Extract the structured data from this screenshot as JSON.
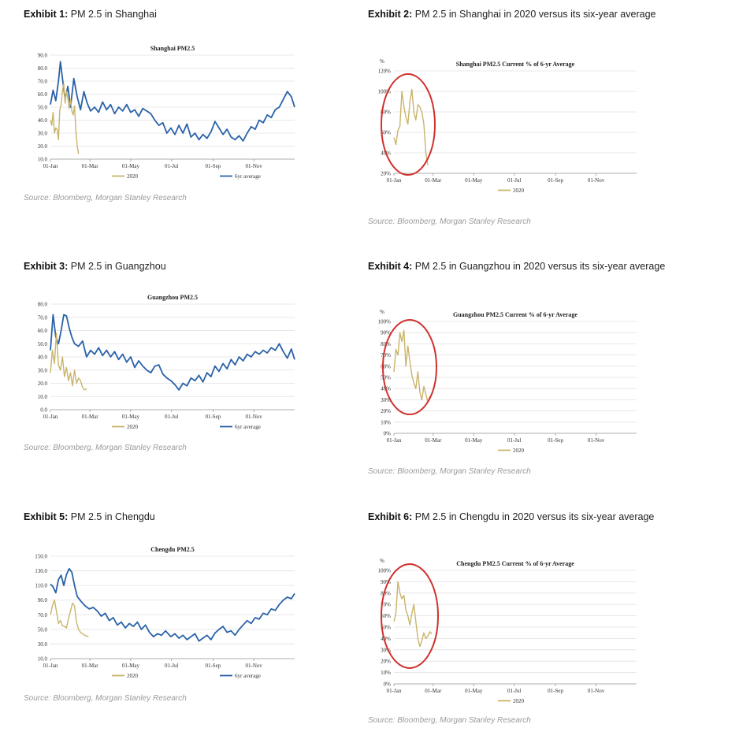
{
  "colors": {
    "six_year_avg": "#2a62a8",
    "y2020": "#c9b46a",
    "circle": "#d0312d",
    "grid": "#e1e1e1"
  },
  "source_text": "Source: Bloomberg, Morgan Stanley Research",
  "exhibits": [
    {
      "label": "Exhibit 1:",
      "title": "PM 2.5 in Shanghai"
    },
    {
      "label": "Exhibit 2:",
      "title": "PM 2.5 in Shanghai in 2020 versus its six-year average"
    },
    {
      "label": "Exhibit 3:",
      "title": "PM 2.5 in Guangzhou"
    },
    {
      "label": "Exhibit 4:",
      "title": "PM 2.5 in Guangzhou in 2020 versus its six-year average"
    },
    {
      "label": "Exhibit 5:",
      "title": "PM 2.5 in Chengdu"
    },
    {
      "label": "Exhibit 6:",
      "title": "PM 2.5 in Chengdu in 2020 versus its six-year average"
    }
  ],
  "chart_data": [
    {
      "type": "line",
      "title": "Shanghai PM2.5",
      "xlabel": "",
      "ylabel": "",
      "xlim": [
        0,
        365
      ],
      "ylim": [
        10,
        90
      ],
      "yticks": [
        "10.0",
        "20.0",
        "30.0",
        "40.0",
        "50.0",
        "60.0",
        "70.0",
        "80.0",
        "90.0"
      ],
      "xtick_labels": [
        "01-Jan",
        "01-Mar",
        "01-May",
        "01-Jul",
        "01-Sep",
        "01-Nov"
      ],
      "xtick_days": [
        0,
        59,
        120,
        181,
        243,
        304
      ],
      "legend": [
        "2020",
        "6yr average"
      ],
      "series": [
        {
          "name": "6yr average",
          "x": [
            0,
            4,
            8,
            12,
            15,
            18,
            22,
            26,
            30,
            35,
            40,
            45,
            50,
            55,
            60,
            66,
            72,
            78,
            84,
            90,
            96,
            102,
            108,
            114,
            120,
            126,
            132,
            138,
            144,
            150,
            156,
            162,
            168,
            174,
            180,
            186,
            192,
            198,
            204,
            210,
            216,
            222,
            228,
            234,
            240,
            246,
            252,
            258,
            264,
            270,
            276,
            282,
            288,
            294,
            300,
            306,
            312,
            318,
            324,
            330,
            336,
            342,
            348,
            354,
            360,
            365
          ],
          "y": [
            52,
            63,
            55,
            70,
            85,
            72,
            56,
            66,
            50,
            72,
            58,
            48,
            62,
            53,
            47,
            50,
            46,
            54,
            48,
            52,
            45,
            50,
            47,
            52,
            46,
            48,
            43,
            49,
            47,
            45,
            40,
            36,
            38,
            30,
            34,
            29,
            36,
            30,
            37,
            27,
            30,
            25,
            29,
            26,
            31,
            39,
            34,
            29,
            33,
            27,
            25,
            28,
            24,
            30,
            35,
            33,
            40,
            38,
            44,
            42,
            48,
            50,
            56,
            62,
            58,
            50
          ]
        },
        {
          "name": "2020",
          "x": [
            0,
            2,
            4,
            6,
            8,
            10,
            12,
            14,
            16,
            18,
            20,
            22,
            24,
            26,
            28,
            30,
            32,
            34,
            36,
            38,
            40,
            42
          ],
          "y": [
            40,
            36,
            46,
            30,
            34,
            33,
            25,
            48,
            52,
            63,
            68,
            53,
            62,
            57,
            49,
            56,
            47,
            44,
            51,
            32,
            20,
            14
          ]
        }
      ]
    },
    {
      "type": "line",
      "title": "Shanghai PM2.5 Current % of 6-yr Average",
      "ylabel": "%",
      "xlim": [
        0,
        365
      ],
      "ylim": [
        20,
        120
      ],
      "yticks": [
        "20%",
        "40%",
        "60%",
        "80%",
        "100%",
        "120%"
      ],
      "xtick_labels": [
        "01-Jan",
        "01-Mar",
        "01-May",
        "01-Jul",
        "01-Sep",
        "01-Nov"
      ],
      "xtick_days": [
        0,
        59,
        120,
        181,
        243,
        304
      ],
      "legend": [
        "2020"
      ],
      "series": [
        {
          "name": "2020",
          "x": [
            0,
            3,
            6,
            9,
            12,
            15,
            18,
            21,
            24,
            27,
            30,
            33,
            36,
            39,
            42,
            45,
            48,
            51
          ],
          "y": [
            55,
            48,
            62,
            66,
            100,
            85,
            75,
            68,
            90,
            102,
            80,
            72,
            87,
            85,
            80,
            68,
            40,
            28
          ]
        }
      ]
    },
    {
      "type": "line",
      "title": "Guangzhou PM2.5",
      "xlabel": "",
      "ylabel": "",
      "xlim": [
        0,
        365
      ],
      "ylim": [
        0,
        80
      ],
      "yticks": [
        "0.0",
        "10.0",
        "20.0",
        "30.0",
        "40.0",
        "50.0",
        "60.0",
        "70.0",
        "80.0"
      ],
      "xtick_labels": [
        "01-Jan",
        "01-Mar",
        "01-May",
        "01-Jul",
        "01-Sep",
        "01-Nov"
      ],
      "xtick_days": [
        0,
        59,
        120,
        181,
        243,
        304
      ],
      "legend": [
        "2020",
        "6yr average"
      ],
      "series": [
        {
          "name": "6yr average",
          "x": [
            0,
            4,
            8,
            12,
            16,
            20,
            24,
            28,
            32,
            36,
            42,
            48,
            54,
            60,
            66,
            72,
            78,
            84,
            90,
            96,
            102,
            108,
            114,
            120,
            126,
            132,
            138,
            144,
            150,
            156,
            162,
            168,
            174,
            180,
            186,
            192,
            198,
            204,
            210,
            216,
            222,
            228,
            234,
            240,
            246,
            252,
            258,
            264,
            270,
            276,
            282,
            288,
            294,
            300,
            306,
            312,
            318,
            324,
            330,
            336,
            342,
            348,
            354,
            360,
            365
          ],
          "y": [
            45,
            72,
            55,
            50,
            60,
            72,
            71,
            62,
            55,
            50,
            48,
            52,
            40,
            45,
            42,
            47,
            41,
            45,
            40,
            44,
            38,
            42,
            36,
            40,
            32,
            37,
            33,
            30,
            28,
            33,
            34,
            27,
            24,
            22,
            19,
            15,
            20,
            18,
            24,
            22,
            26,
            21,
            28,
            25,
            33,
            29,
            35,
            31,
            38,
            34,
            40,
            37,
            42,
            40,
            44,
            42,
            45,
            43,
            47,
            45,
            50,
            44,
            39,
            46,
            38
          ]
        },
        {
          "name": "2020",
          "x": [
            0,
            3,
            6,
            9,
            12,
            15,
            18,
            21,
            24,
            27,
            30,
            33,
            36,
            39,
            42,
            45,
            48,
            51,
            54
          ],
          "y": [
            28,
            45,
            35,
            58,
            34,
            30,
            40,
            25,
            32,
            22,
            28,
            18,
            30,
            20,
            24,
            22,
            17,
            15,
            16
          ]
        }
      ]
    },
    {
      "type": "line",
      "title": "Guangzhou PM2.5 Current % of 6-yr Average",
      "ylabel": "%",
      "xlim": [
        0,
        365
      ],
      "ylim": [
        0,
        100
      ],
      "yticks": [
        "0%",
        "10%",
        "20%",
        "30%",
        "40%",
        "50%",
        "60%",
        "70%",
        "80%",
        "90%",
        "100%"
      ],
      "xtick_labels": [
        "01-Jan",
        "01-Mar",
        "01-May",
        "01-Jul",
        "01-Sep",
        "01-Nov"
      ],
      "xtick_days": [
        0,
        59,
        120,
        181,
        243,
        304
      ],
      "legend": [
        "2020"
      ],
      "series": [
        {
          "name": "2020",
          "x": [
            0,
            3,
            6,
            9,
            12,
            15,
            18,
            21,
            24,
            27,
            30,
            33,
            36,
            39,
            42,
            45,
            48,
            51,
            54
          ],
          "y": [
            55,
            75,
            70,
            90,
            82,
            92,
            60,
            78,
            64,
            52,
            45,
            40,
            55,
            37,
            30,
            42,
            35,
            28,
            33
          ]
        }
      ]
    },
    {
      "type": "line",
      "title": "Chengdu PM2.5",
      "xlabel": "",
      "ylabel": "",
      "xlim": [
        0,
        365
      ],
      "ylim": [
        10,
        150
      ],
      "yticks": [
        "10.0",
        "30.0",
        "50.0",
        "70.0",
        "90.0",
        "110.0",
        "130.0",
        "150.0"
      ],
      "xtick_labels": [
        "01-Jan",
        "01-Mar",
        "01-May",
        "01-Jul",
        "01-Sep",
        "01-Nov"
      ],
      "xtick_days": [
        0,
        59,
        120,
        181,
        243,
        304
      ],
      "legend": [
        "2020",
        "6yr average"
      ],
      "series": [
        {
          "name": "6yr average",
          "x": [
            0,
            4,
            8,
            12,
            16,
            20,
            24,
            28,
            32,
            36,
            40,
            46,
            52,
            58,
            64,
            70,
            76,
            82,
            88,
            94,
            100,
            106,
            112,
            118,
            124,
            130,
            136,
            142,
            148,
            154,
            160,
            166,
            172,
            180,
            186,
            192,
            198,
            204,
            210,
            216,
            222,
            228,
            234,
            240,
            246,
            252,
            258,
            264,
            270,
            276,
            282,
            288,
            294,
            300,
            306,
            312,
            318,
            324,
            330,
            336,
            342,
            348,
            354,
            360,
            365
          ],
          "y": [
            112,
            108,
            100,
            118,
            124,
            110,
            125,
            133,
            128,
            110,
            95,
            88,
            82,
            78,
            80,
            75,
            68,
            72,
            62,
            66,
            56,
            60,
            52,
            58,
            54,
            60,
            50,
            56,
            46,
            40,
            44,
            42,
            48,
            40,
            44,
            38,
            42,
            36,
            40,
            44,
            34,
            38,
            42,
            36,
            45,
            50,
            54,
            46,
            48,
            42,
            50,
            56,
            62,
            58,
            66,
            64,
            72,
            70,
            78,
            76,
            84,
            90,
            94,
            92,
            99
          ]
        },
        {
          "name": "2020",
          "x": [
            0,
            3,
            6,
            9,
            12,
            15,
            18,
            21,
            24,
            27,
            30,
            33,
            36,
            39,
            42,
            45,
            48,
            51,
            54,
            57
          ],
          "y": [
            70,
            82,
            90,
            75,
            58,
            62,
            55,
            54,
            52,
            65,
            75,
            86,
            82,
            60,
            50,
            46,
            44,
            42,
            41,
            40
          ]
        }
      ]
    },
    {
      "type": "line",
      "title": "Chengdu PM2.5 Current % of 6-yr Average",
      "ylabel": "%",
      "xlim": [
        0,
        365
      ],
      "ylim": [
        0,
        100
      ],
      "yticks": [
        "0%",
        "10%",
        "20%",
        "30%",
        "40%",
        "50%",
        "60%",
        "70%",
        "80%",
        "90%",
        "100%"
      ],
      "xtick_labels": [
        "01-Jan",
        "01-Mar",
        "01-May",
        "01-Jul",
        "01-Sep",
        "01-Nov"
      ],
      "xtick_days": [
        0,
        59,
        120,
        181,
        243,
        304
      ],
      "legend": [
        "2020"
      ],
      "series": [
        {
          "name": "2020",
          "x": [
            0,
            3,
            6,
            9,
            12,
            15,
            18,
            21,
            24,
            27,
            30,
            33,
            36,
            39,
            42,
            45,
            48,
            51,
            54,
            57
          ],
          "y": [
            55,
            62,
            90,
            80,
            75,
            78,
            65,
            60,
            52,
            62,
            70,
            55,
            40,
            33,
            38,
            45,
            40,
            42,
            46,
            44
          ]
        }
      ]
    }
  ]
}
